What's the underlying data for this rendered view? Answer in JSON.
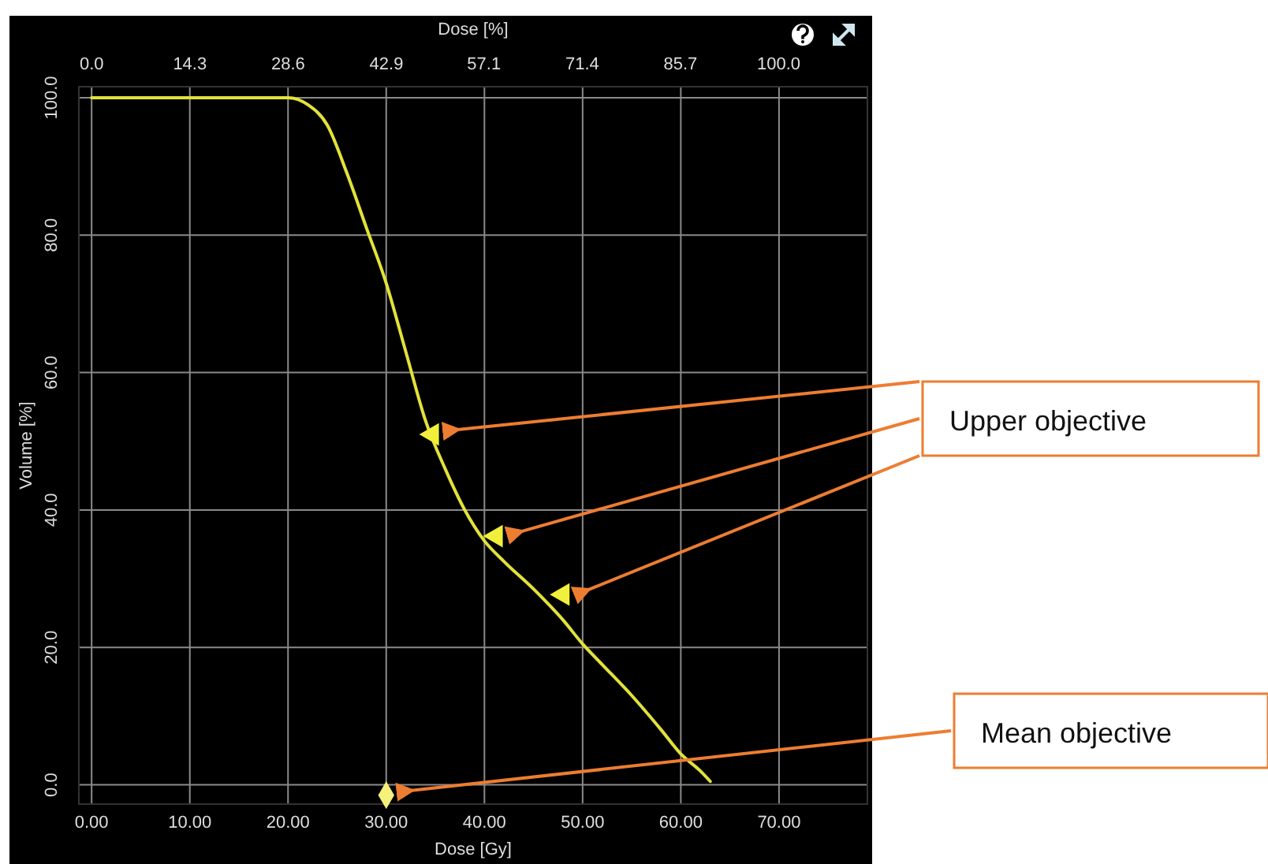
{
  "chart_data": {
    "type": "line",
    "xlabel": "Dose [Gy]",
    "ylabel": "Volume [%]",
    "x2label": "Dose [%]",
    "xlim": [
      -1.3,
      79
    ],
    "xticks": [
      {
        "value": 0,
        "label": "0.00"
      },
      {
        "value": 10,
        "label": "10.00"
      },
      {
        "value": 20,
        "label": "20.00"
      },
      {
        "value": 30,
        "label": "30.00"
      },
      {
        "value": 40,
        "label": "40.00"
      },
      {
        "value": 50,
        "label": "50.00"
      },
      {
        "value": 60,
        "label": "60.00"
      },
      {
        "value": 70,
        "label": "70.00"
      }
    ],
    "x2lim": [
      -1.86,
      112.9
    ],
    "x2ticks": [
      {
        "value": 0,
        "label": "0.0"
      },
      14.3,
      28.6,
      42.9,
      57.1,
      71.4,
      85.7,
      {
        "value": 100,
        "label": "100.0"
      }
    ],
    "ylim": [
      -2.8,
      101.6
    ],
    "yticks": [
      {
        "value": 0,
        "label": "0.0"
      },
      {
        "value": 20,
        "label": "20.0"
      },
      {
        "value": 40,
        "label": "40.0"
      },
      {
        "value": 60,
        "label": "60.0"
      },
      {
        "value": 80,
        "label": "80.0"
      },
      {
        "value": 100,
        "label": "100.0"
      }
    ],
    "grid": true,
    "series": [
      {
        "color": "#e2e23a",
        "marker": "none",
        "x": [
          0,
          20,
          22,
          24,
          26,
          28,
          30,
          32,
          34,
          36,
          38,
          40,
          42,
          45,
          48,
          50,
          52,
          55,
          58,
          60,
          62,
          63
        ],
        "values": [
          100,
          100,
          99,
          96,
          89,
          81,
          73,
          63,
          53,
          46,
          40,
          35.5,
          32.5,
          28.5,
          24,
          20.5,
          17.5,
          13,
          8,
          4.5,
          2,
          0.5
        ]
      },
      {
        "type": "scatter",
        "color": "#f0f03c",
        "marker": "triangle",
        "x": [
          34.7,
          41.2,
          48
        ],
        "values": [
          51,
          36.2,
          27.7
        ]
      },
      {
        "type": "scatter",
        "color": "#f5f07a",
        "marker": "diamond",
        "x": [
          30
        ],
        "values": [
          -1.5
        ]
      }
    ],
    "annotations": [
      "Upper objective",
      "Mean objective"
    ]
  }
}
